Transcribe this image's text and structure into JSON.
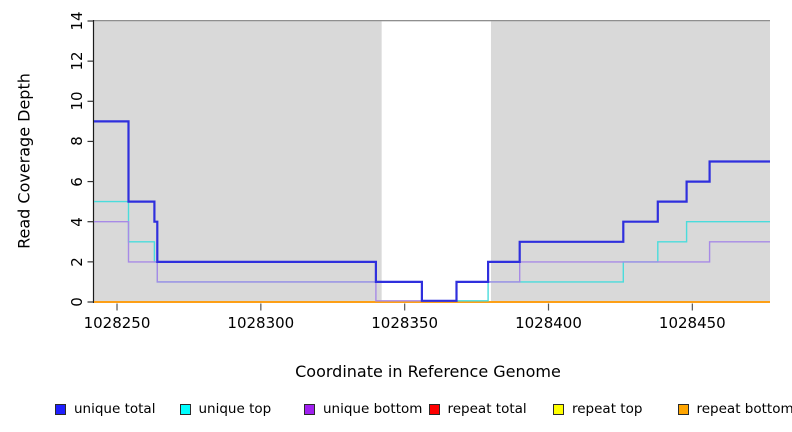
{
  "chart_data": {
    "type": "step",
    "title": "",
    "xlabel": "Coordinate in Reference Genome",
    "ylabel": "Read Coverage Depth",
    "xlim": [
      1028242,
      1028477
    ],
    "ylim": [
      0,
      14
    ],
    "x_ticks": [
      1028250,
      1028300,
      1028350,
      1028400,
      1028450
    ],
    "y_ticks": [
      0,
      2,
      4,
      6,
      8,
      10,
      12,
      14
    ],
    "grid": false,
    "legend_position": "bottom",
    "panel_background": "#d9d9d9",
    "panel_top_line_color": "#8f8f8f",
    "unshaded_band": {
      "x_start": 1028342,
      "x_end": 1028380,
      "color": "#ffffff"
    },
    "series": [
      {
        "name": "repeat total",
        "group": "repeat",
        "color": "#ff0000",
        "line_color": "#ee2222",
        "line_width": 1.4,
        "draw_order": 1,
        "steps": [
          [
            1028242,
            0
          ]
        ]
      },
      {
        "name": "repeat top",
        "group": "repeat",
        "color": "#ffff00",
        "line_color": "#f2e500",
        "line_width": 1.4,
        "draw_order": 2,
        "steps": [
          [
            1028242,
            0
          ]
        ]
      },
      {
        "name": "repeat bottom",
        "group": "repeat",
        "color": "#ffa500",
        "line_color": "#ff9d10",
        "line_width": 1.8,
        "draw_order": 3,
        "steps": [
          [
            1028242,
            0
          ]
        ]
      },
      {
        "name": "unique top",
        "group": "unique",
        "color": "#00ffff",
        "line_color": "#4adcdc",
        "line_width": 1.4,
        "draw_order": 4,
        "steps": [
          [
            1028242,
            5
          ],
          [
            1028254,
            3
          ],
          [
            1028263,
            2
          ],
          [
            1028264,
            1
          ],
          [
            1028356,
            0
          ],
          [
            1028379,
            1
          ],
          [
            1028426,
            2
          ],
          [
            1028438,
            3
          ],
          [
            1028448,
            4
          ]
        ]
      },
      {
        "name": "unique bottom",
        "group": "unique",
        "color": "#a020f0",
        "line_color": "#a78ae6",
        "line_width": 1.4,
        "draw_order": 5,
        "steps": [
          [
            1028242,
            4
          ],
          [
            1028254,
            2
          ],
          [
            1028264,
            1
          ],
          [
            1028340,
            0
          ],
          [
            1028368,
            1
          ],
          [
            1028390,
            2
          ],
          [
            1028456,
            3
          ]
        ]
      },
      {
        "name": "unique total",
        "group": "unique",
        "color": "#1f1fff",
        "line_color": "#2f2fdd",
        "line_width": 2.2,
        "draw_order": 6,
        "steps": [
          [
            1028242,
            9
          ],
          [
            1028254,
            5
          ],
          [
            1028263,
            4
          ],
          [
            1028264,
            2
          ],
          [
            1028340,
            1
          ],
          [
            1028356,
            0
          ],
          [
            1028368,
            1
          ],
          [
            1028379,
            2
          ],
          [
            1028390,
            3
          ],
          [
            1028426,
            4
          ],
          [
            1028438,
            5
          ],
          [
            1028448,
            6
          ],
          [
            1028456,
            7
          ]
        ]
      }
    ]
  },
  "legend": {
    "items": [
      {
        "label": "unique total",
        "swatch": "#1f1fff"
      },
      {
        "label": "unique top",
        "swatch": "#00ffff"
      },
      {
        "label": "unique bottom",
        "swatch": "#a020f0"
      },
      {
        "label": "repeat total",
        "swatch": "#ff0000"
      },
      {
        "label": "repeat top",
        "swatch": "#ffff00"
      },
      {
        "label": "repeat bottom",
        "swatch": "#ffa500"
      }
    ]
  }
}
